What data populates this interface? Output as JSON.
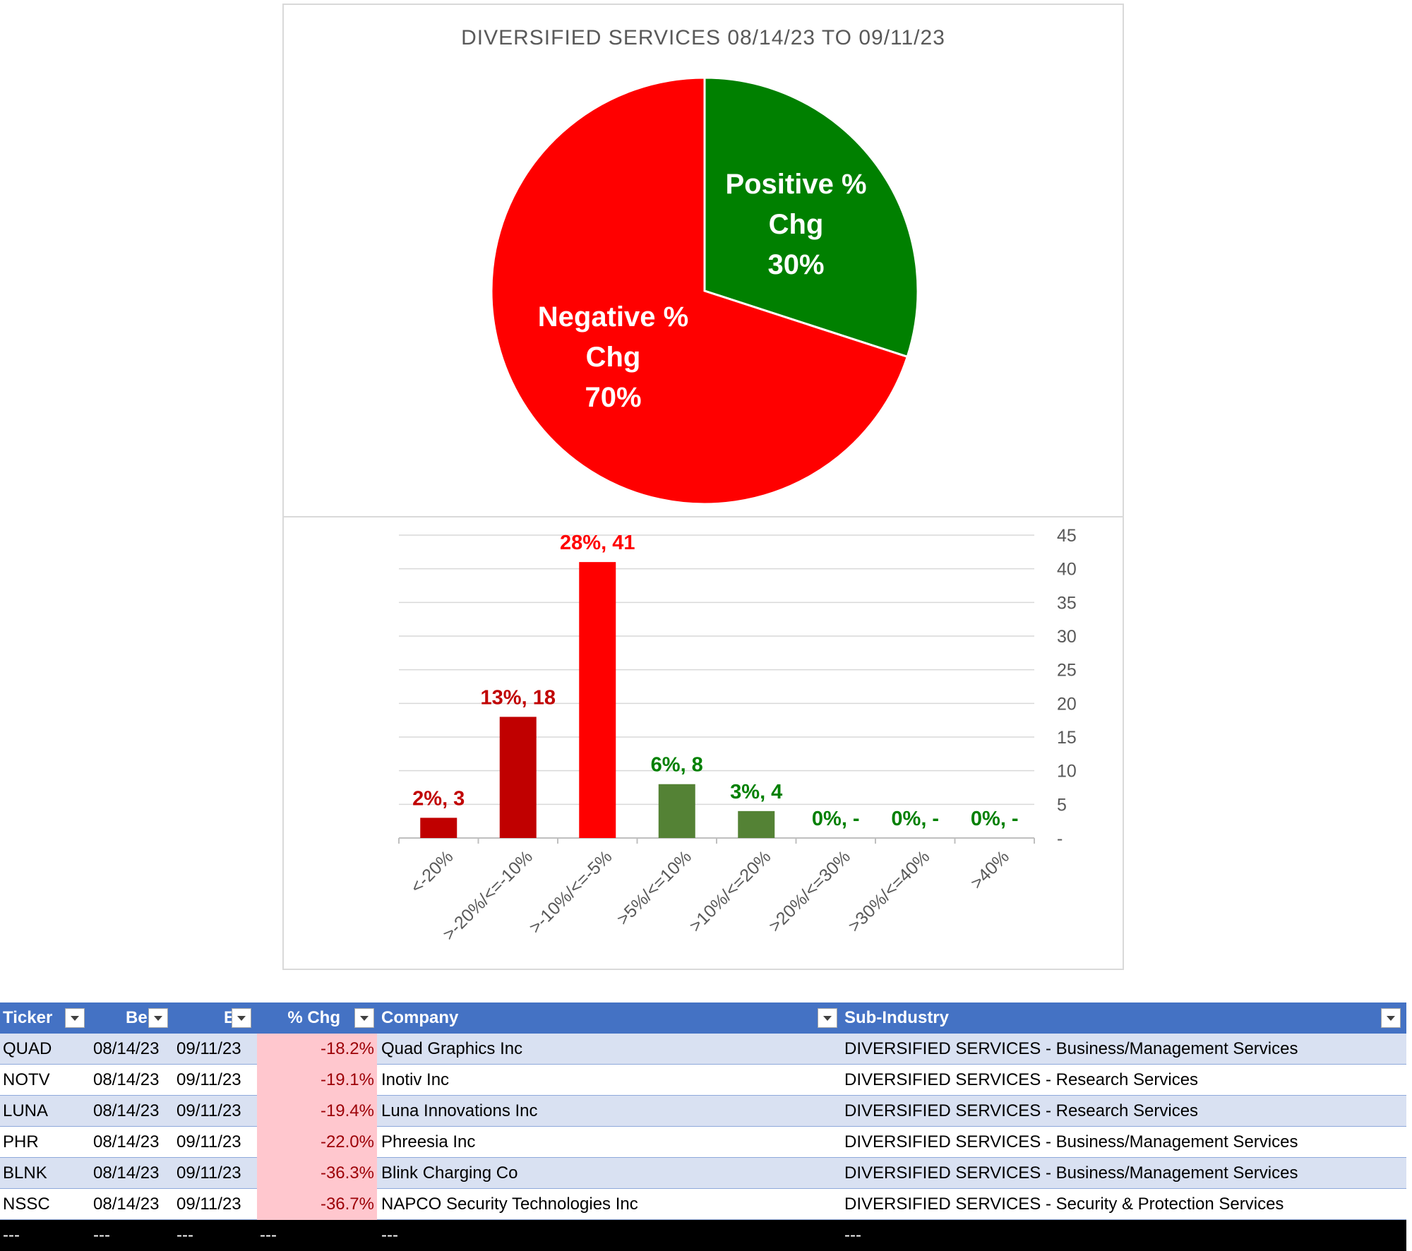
{
  "chart_data": [
    {
      "type": "pie",
      "title": "DIVERSIFIED  SERVICES  08/14/23 TO 09/11/23",
      "slices": [
        {
          "label_lines": [
            "Positive %",
            "Chg",
            "30%"
          ],
          "value": 30,
          "color": "#008000"
        },
        {
          "label_lines": [
            "Negative %",
            "Chg",
            "70%"
          ],
          "value": 70,
          "color": "#ff0000"
        }
      ]
    },
    {
      "type": "bar",
      "categories": [
        "<-20%",
        ">-20%/<=-10%",
        ">-10%/<=-5%",
        ">5%/<=10%",
        ">10%/<=20%",
        ">20%/<=30%",
        ">30%/<=40%",
        ">40%"
      ],
      "values": [
        3,
        18,
        41,
        8,
        4,
        0,
        0,
        0
      ],
      "data_labels": [
        "2%,  3",
        "13%,  18",
        "28%,  41",
        "6%,  8",
        "3%,  4",
        "0%,  -",
        "0%,  -",
        "0%,  -"
      ],
      "bar_colors": [
        "#c00000",
        "#c00000",
        "#ff0000",
        "#548235",
        "#548235",
        "#548235",
        "#548235",
        "#548235"
      ],
      "label_colors": [
        "#c00000",
        "#c00000",
        "#ff0000",
        "#008000",
        "#008000",
        "#008000",
        "#008000",
        "#008000"
      ],
      "ylim": [
        0,
        45
      ],
      "yticks": [
        "-",
        "5",
        "10",
        "15",
        "20",
        "25",
        "30",
        "35",
        "40",
        "45"
      ],
      "ytick_values": [
        0,
        5,
        10,
        15,
        20,
        25,
        30,
        35,
        40,
        45
      ],
      "axis_side": "right",
      "grid": true
    }
  ],
  "table": {
    "headers": [
      "Ticker",
      "Be",
      "E",
      "% Chg",
      "Company",
      "Sub-Industry"
    ],
    "rows": [
      [
        "QUAD",
        "08/14/23",
        "09/11/23",
        "-18.2%",
        "Quad Graphics Inc",
        "DIVERSIFIED SERVICES - Business/Management Services"
      ],
      [
        "NOTV",
        "08/14/23",
        "09/11/23",
        "-19.1%",
        "Inotiv Inc",
        "DIVERSIFIED SERVICES - Research Services"
      ],
      [
        "LUNA",
        "08/14/23",
        "09/11/23",
        "-19.4%",
        "Luna Innovations Inc",
        "DIVERSIFIED SERVICES - Research Services"
      ],
      [
        "PHR",
        "08/14/23",
        "09/11/23",
        "-22.0%",
        "Phreesia Inc",
        "DIVERSIFIED SERVICES - Business/Management Services"
      ],
      [
        "BLNK",
        "08/14/23",
        "09/11/23",
        "-36.3%",
        "Blink Charging Co",
        "DIVERSIFIED SERVICES - Business/Management Services"
      ],
      [
        "NSSC",
        "08/14/23",
        "09/11/23",
        "-36.7%",
        "NAPCO Security Technologies Inc",
        "DIVERSIFIED SERVICES - Security & Protection Services"
      ]
    ],
    "total_row": [
      "---",
      "---",
      "---",
      "---",
      "---",
      "---"
    ]
  }
}
